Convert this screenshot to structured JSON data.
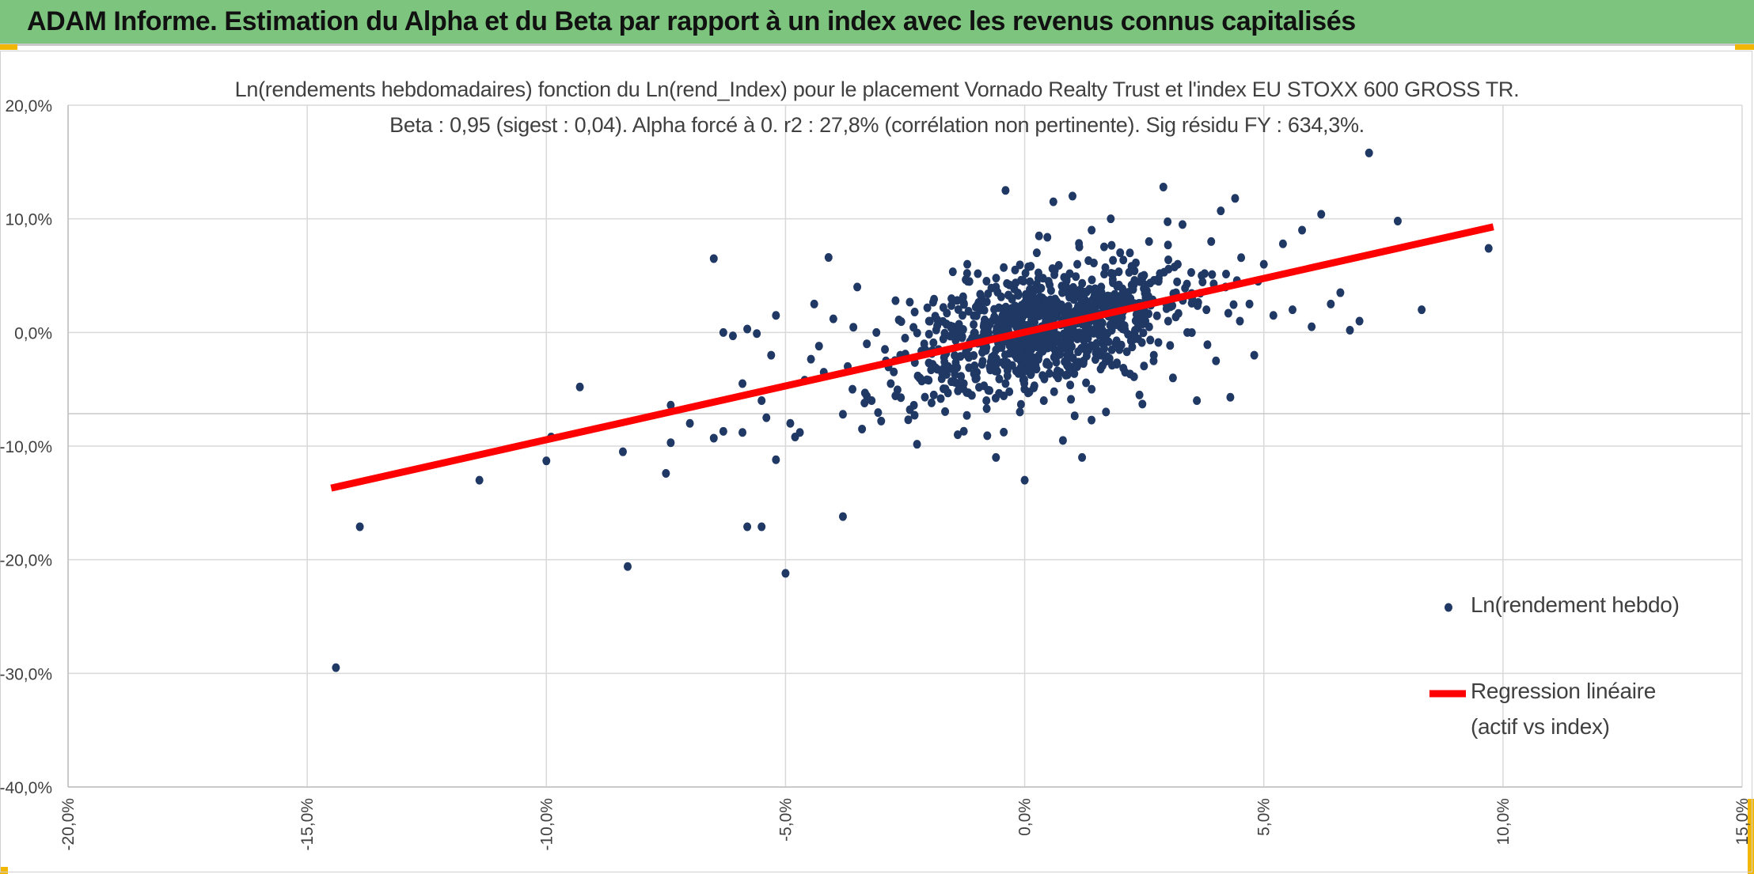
{
  "header": {
    "title": "ADAM Informe. Estimation du Alpha et du Beta par rapport à un index avec les revenus connus capitalisés"
  },
  "colors": {
    "banner": "#7dc57e",
    "points": "#1f3864",
    "regression": "#ff0000",
    "grid": "#d9d9d9"
  },
  "chart_data": {
    "type": "scatter",
    "title": "Ln(rendements hebdomadaires) fonction du Ln(rend_Index) pour le placement Vornado Realty Trust et l'index EU STOXX 600 GROSS TR.",
    "subtitle": "Beta : 0,95 (sigest : 0,04). Alpha forcé à 0. r2 : 27,8% (corrélation non pertinente). Sig résidu FY : 634,3%.",
    "xlim": [
      -0.2,
      0.15
    ],
    "ylim": [
      -0.4,
      0.2
    ],
    "x_ticks": [
      -0.2,
      -0.15,
      -0.1,
      -0.05,
      0.0,
      0.05,
      0.1,
      0.15
    ],
    "x_tick_labels": [
      "-20,0%",
      "-15,0%",
      "-10,0%",
      "-5,0%",
      "0,0%",
      "5,0%",
      "10,0%",
      "15,0%"
    ],
    "y_ticks": [
      0.2,
      0.1,
      0.0,
      -0.1,
      -0.2,
      -0.3,
      -0.4
    ],
    "y_tick_labels": [
      "20,0%",
      "10,0%",
      "0,0%",
      "-10,0%",
      "-20,0%",
      "-30,0%",
      "-40,0%"
    ],
    "grid": true,
    "legend_position": "right",
    "series": [
      {
        "name": "Ln(rendement hebdo)",
        "kind": "points",
        "points": [
          [
            -0.144,
            -0.295
          ],
          [
            -0.139,
            -0.171
          ],
          [
            -0.114,
            -0.13
          ],
          [
            -0.1,
            -0.113
          ],
          [
            -0.099,
            -0.092
          ],
          [
            -0.093,
            -0.048
          ],
          [
            -0.084,
            -0.105
          ],
          [
            -0.083,
            -0.206
          ],
          [
            -0.075,
            -0.124
          ],
          [
            -0.074,
            -0.097
          ],
          [
            -0.074,
            -0.064
          ],
          [
            -0.07,
            -0.08
          ],
          [
            -0.065,
            0.065
          ],
          [
            -0.065,
            -0.093
          ],
          [
            -0.063,
            -0.087
          ],
          [
            -0.063,
            0.0
          ],
          [
            -0.061,
            -0.003
          ],
          [
            -0.059,
            -0.045
          ],
          [
            -0.059,
            -0.088
          ],
          [
            -0.058,
            -0.171
          ],
          [
            -0.058,
            0.003
          ],
          [
            -0.056,
            -0.001
          ],
          [
            -0.055,
            -0.171
          ],
          [
            -0.055,
            -0.06
          ],
          [
            -0.054,
            -0.075
          ],
          [
            -0.053,
            -0.02
          ],
          [
            -0.052,
            0.015
          ],
          [
            -0.052,
            -0.112
          ],
          [
            -0.05,
            -0.212
          ],
          [
            -0.049,
            -0.08
          ],
          [
            -0.048,
            -0.092
          ],
          [
            -0.047,
            -0.088
          ],
          [
            -0.046,
            -0.042
          ],
          [
            -0.044,
            0.025
          ],
          [
            -0.043,
            -0.012
          ],
          [
            -0.042,
            -0.035
          ],
          [
            -0.041,
            0.066
          ],
          [
            -0.04,
            0.012
          ],
          [
            -0.038,
            -0.162
          ],
          [
            -0.038,
            -0.072
          ],
          [
            -0.037,
            -0.03
          ],
          [
            -0.036,
            -0.05
          ],
          [
            -0.035,
            0.04
          ],
          [
            -0.034,
            -0.085
          ],
          [
            -0.033,
            -0.01
          ],
          [
            -0.032,
            -0.06
          ],
          [
            -0.031,
            0.0
          ],
          [
            -0.03,
            -0.078
          ],
          [
            -0.029,
            -0.025
          ],
          [
            -0.028,
            -0.045
          ],
          [
            -0.027,
            0.028
          ],
          [
            -0.026,
            -0.02
          ],
          [
            -0.025,
            -0.005
          ],
          [
            -0.024,
            -0.068
          ],
          [
            -0.023,
            0.018
          ],
          [
            -0.022,
            -0.04
          ],
          [
            -0.021,
            -0.01
          ],
          [
            -0.02,
            0.01
          ],
          [
            -0.019,
            -0.055
          ],
          [
            -0.018,
            -0.015
          ],
          [
            -0.017,
            0.022
          ],
          [
            -0.016,
            -0.03
          ],
          [
            -0.015,
            0.005
          ],
          [
            -0.014,
            -0.09
          ],
          [
            -0.014,
            -0.045
          ],
          [
            -0.013,
            0.015
          ],
          [
            -0.012,
            -0.02
          ],
          [
            -0.012,
            0.06
          ],
          [
            -0.011,
            -0.005
          ],
          [
            -0.01,
            -0.035
          ],
          [
            -0.009,
            0.03
          ],
          [
            -0.008,
            -0.06
          ],
          [
            -0.008,
            0.008
          ],
          [
            -0.007,
            -0.025
          ],
          [
            -0.006,
            0.04
          ],
          [
            -0.006,
            -0.11
          ],
          [
            -0.005,
            0.002
          ],
          [
            -0.004,
            -0.045
          ],
          [
            -0.004,
            0.125
          ],
          [
            -0.003,
            0.02
          ],
          [
            -0.002,
            -0.015
          ],
          [
            -0.002,
            0.055
          ],
          [
            -0.001,
            -0.07
          ],
          [
            0.0,
            0.005
          ],
          [
            0.0,
            -0.13
          ],
          [
            0.001,
            -0.03
          ],
          [
            0.002,
            0.03
          ],
          [
            0.002,
            -0.004
          ],
          [
            0.003,
            0.085
          ],
          [
            0.003,
            -0.02
          ],
          [
            0.004,
            0.015
          ],
          [
            0.004,
            -0.06
          ],
          [
            0.005,
            0.0
          ],
          [
            0.005,
            0.045
          ],
          [
            0.006,
            -0.01
          ],
          [
            0.006,
            0.115
          ],
          [
            0.007,
            0.022
          ],
          [
            0.007,
            -0.04
          ],
          [
            0.008,
            0.008
          ],
          [
            0.008,
            -0.095
          ],
          [
            0.009,
            0.035
          ],
          [
            0.009,
            -0.015
          ],
          [
            0.01,
            0.002
          ],
          [
            0.01,
            0.12
          ],
          [
            0.011,
            -0.03
          ],
          [
            0.011,
            0.06
          ],
          [
            0.012,
            0.012
          ],
          [
            0.012,
            -0.11
          ],
          [
            0.013,
            -0.005
          ],
          [
            0.013,
            0.025
          ],
          [
            0.014,
            -0.05
          ],
          [
            0.014,
            0.09
          ],
          [
            0.015,
            0.005
          ],
          [
            0.016,
            -0.02
          ],
          [
            0.016,
            0.04
          ],
          [
            0.017,
            -0.07
          ],
          [
            0.018,
            0.018
          ],
          [
            0.018,
            0.1
          ],
          [
            0.019,
            -0.01
          ],
          [
            0.02,
            0.03
          ],
          [
            0.021,
            -0.035
          ],
          [
            0.022,
            0.07
          ],
          [
            0.023,
            0.0
          ],
          [
            0.024,
            -0.055
          ],
          [
            0.025,
            0.02
          ],
          [
            0.026,
            0.08
          ],
          [
            0.027,
            -0.02
          ],
          [
            0.028,
            0.045
          ],
          [
            0.029,
            0.128
          ],
          [
            0.03,
            0.01
          ],
          [
            0.031,
            -0.04
          ],
          [
            0.032,
            0.06
          ],
          [
            0.033,
            0.095
          ],
          [
            0.034,
            0.0
          ],
          [
            0.035,
            0.03
          ],
          [
            0.036,
            -0.06
          ],
          [
            0.037,
            0.05
          ],
          [
            0.038,
            0.02
          ],
          [
            0.039,
            0.08
          ],
          [
            0.04,
            -0.025
          ],
          [
            0.041,
            0.107
          ],
          [
            0.042,
            0.04
          ],
          [
            0.043,
            -0.057
          ],
          [
            0.044,
            0.118
          ],
          [
            0.045,
            0.01
          ],
          [
            0.047,
            0.025
          ],
          [
            0.048,
            -0.02
          ],
          [
            0.05,
            0.06
          ],
          [
            0.052,
            0.015
          ],
          [
            0.054,
            0.078
          ],
          [
            0.056,
            0.02
          ],
          [
            0.058,
            0.09
          ],
          [
            0.06,
            0.005
          ],
          [
            0.062,
            0.104
          ],
          [
            0.064,
            0.025
          ],
          [
            0.066,
            0.035
          ],
          [
            0.068,
            0.002
          ],
          [
            0.07,
            0.01
          ],
          [
            0.072,
            0.158
          ],
          [
            0.078,
            0.098
          ],
          [
            0.083,
            0.02
          ],
          [
            0.097,
            0.074
          ]
        ]
      },
      {
        "name": "Regression linéaire (actif vs index)",
        "kind": "line",
        "points": [
          [
            -0.145,
            -0.137
          ],
          [
            0.098,
            0.093
          ]
        ]
      }
    ],
    "legend": [
      {
        "label": "Ln(rendement hebdo)"
      },
      {
        "label_line1": "Regression linéaire",
        "label_line2": "(actif vs index)"
      }
    ]
  }
}
